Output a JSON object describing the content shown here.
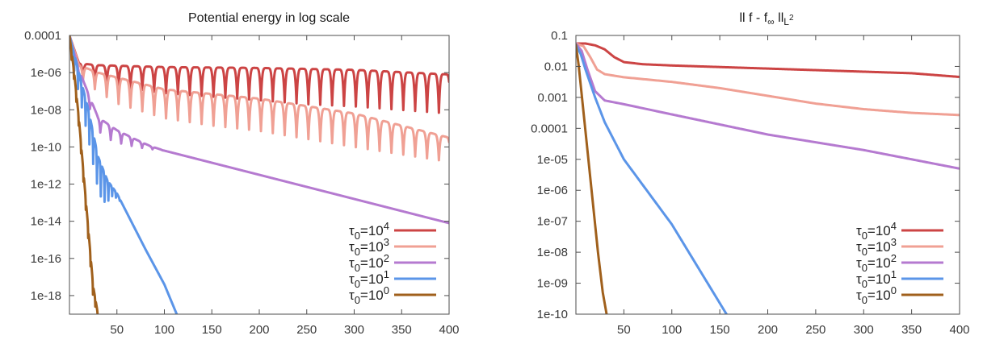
{
  "chart_data": [
    {
      "type": "line",
      "title": "Potential energy in log scale",
      "xlabel": "",
      "ylabel": "",
      "yscale": "log",
      "xlim": [
        0,
        400
      ],
      "ylim_exponents": [
        -19,
        -4
      ],
      "x_ticks": [
        50,
        100,
        150,
        200,
        250,
        300,
        350,
        400
      ],
      "x_tick_labels": [
        "50",
        "100",
        "150",
        "200",
        "250",
        "300",
        "350",
        "400"
      ],
      "y_ticks_exp": [
        -4,
        -6,
        -8,
        -10,
        -12,
        -14,
        -16,
        -18
      ],
      "y_tick_labels": [
        "0.0001",
        "1e-06",
        "1e-08",
        "1e-10",
        "1e-12",
        "1e-14",
        "1e-16",
        "1e-18"
      ],
      "grid": false,
      "legend_position": "bottom-right",
      "series": [
        {
          "name_prefix": "τ",
          "name_sub": "0",
          "name_mid": "=10",
          "name_sup": "4",
          "color": "#cc4444",
          "envelope_exp": [
            [
              0,
              -4
            ],
            [
              10,
              -5.5
            ],
            [
              30,
              -5.6
            ],
            [
              100,
              -5.7
            ],
            [
              200,
              -5.75
            ],
            [
              300,
              -5.85
            ],
            [
              400,
              -6.1
            ]
          ],
          "oscillation": {
            "start_x": 8,
            "period": 12.5,
            "depth_exp": [
              [
                8,
                -0.6
              ],
              [
                30,
                -1.0
              ],
              [
                100,
                -1.4
              ],
              [
                250,
                -1.9
              ],
              [
                400,
                -2.1
              ]
            ]
          }
        },
        {
          "name_prefix": "τ",
          "name_sub": "0",
          "name_mid": "=10",
          "name_sup": "3",
          "color": "#f0a094",
          "envelope_exp": [
            [
              0,
              -4
            ],
            [
              10,
              -5.6
            ],
            [
              30,
              -6.0
            ],
            [
              100,
              -6.9
            ],
            [
              200,
              -7.4
            ],
            [
              300,
              -8.2
            ],
            [
              400,
              -9.5
            ]
          ],
          "oscillation": {
            "start_x": 8,
            "period": 12.5,
            "depth_exp": [
              [
                8,
                -0.6
              ],
              [
                50,
                -1.4
              ],
              [
                150,
                -1.7
              ],
              [
                300,
                -1.8
              ],
              [
                400,
                -1.3
              ]
            ]
          }
        },
        {
          "name_prefix": "τ",
          "name_sub": "0",
          "name_mid": "=10",
          "name_sup": "2",
          "color": "#b57ad0",
          "envelope_exp": [
            [
              0,
              -4
            ],
            [
              8,
              -5.5
            ],
            [
              15,
              -6.5
            ],
            [
              30,
              -8.4
            ],
            [
              50,
              -9.1
            ],
            [
              70,
              -9.6
            ],
            [
              85,
              -9.95
            ],
            [
              100,
              -10.2
            ],
            [
              200,
              -11.5
            ],
            [
              300,
              -12.8
            ],
            [
              400,
              -14.1
            ]
          ],
          "oscillation": {
            "start_x": 5,
            "period": 11,
            "depth_exp": [
              [
                5,
                -0.5
              ],
              [
                40,
                -0.8
              ],
              [
                70,
                -0.4
              ],
              [
                90,
                -0.1
              ],
              [
                100,
                0
              ]
            ]
          }
        },
        {
          "name_prefix": "τ",
          "name_sub": "0",
          "name_mid": "=10",
          "name_sup": "1",
          "color": "#5b95e8",
          "envelope_exp": [
            [
              0,
              -4
            ],
            [
              10,
              -6
            ],
            [
              20,
              -8
            ],
            [
              30,
              -10.5
            ],
            [
              40,
              -11.8
            ],
            [
              50,
              -12.5
            ],
            [
              65,
              -14
            ],
            [
              80,
              -15.5
            ],
            [
              100,
              -17.4
            ],
            [
              113,
              -19
            ]
          ],
          "oscillation": {
            "start_x": 3,
            "period": 4,
            "depth_exp": [
              [
                3,
                -0.8
              ],
              [
                20,
                -1.6
              ],
              [
                35,
                -1.8
              ],
              [
                45,
                -0.5
              ],
              [
                55,
                0
              ]
            ]
          }
        },
        {
          "name_prefix": "τ",
          "name_sub": "0",
          "name_mid": "=10",
          "name_sup": "0",
          "color": "#a0601c",
          "envelope_exp": [
            [
              0,
              -4
            ],
            [
              5,
              -6
            ],
            [
              10,
              -8.5
            ],
            [
              15,
              -11.5
            ],
            [
              20,
              -14.5
            ],
            [
              25,
              -17.5
            ],
            [
              30,
              -19
            ]
          ],
          "oscillation": {
            "start_x": 1,
            "period": 2.5,
            "depth_exp": [
              [
                1,
                -0.4
              ],
              [
                25,
                -0.6
              ],
              [
                30,
                -0.2
              ]
            ]
          }
        }
      ]
    },
    {
      "type": "line",
      "title_parts": [
        "ll f - f",
        "∞",
        " ll",
        "L",
        "2"
      ],
      "xlabel": "",
      "ylabel": "",
      "yscale": "log",
      "xlim": [
        0,
        400
      ],
      "ylim_exponents": [
        -10,
        -1
      ],
      "x_ticks": [
        50,
        100,
        150,
        200,
        250,
        300,
        350,
        400
      ],
      "x_tick_labels": [
        "50",
        "100",
        "150",
        "200",
        "250",
        "300",
        "350",
        "400"
      ],
      "y_ticks_exp": [
        -1,
        -2,
        -3,
        -4,
        -5,
        -6,
        -7,
        -8,
        -9,
        -10
      ],
      "y_tick_labels": [
        "0.1",
        "0.01",
        "0.001",
        "0.0001",
        "1e-05",
        "1e-06",
        "1e-07",
        "1e-08",
        "1e-09",
        "1e-10"
      ],
      "grid": false,
      "legend_position": "bottom-right",
      "series": [
        {
          "name_prefix": "τ",
          "name_sub": "0",
          "name_mid": "=10",
          "name_sup": "4",
          "color": "#cc4444",
          "points_exp": [
            [
              0,
              -1.26
            ],
            [
              10,
              -1.26
            ],
            [
              20,
              -1.32
            ],
            [
              30,
              -1.45
            ],
            [
              40,
              -1.7
            ],
            [
              50,
              -1.86
            ],
            [
              70,
              -1.93
            ],
            [
              100,
              -1.97
            ],
            [
              150,
              -2.02
            ],
            [
              200,
              -2.07
            ],
            [
              250,
              -2.12
            ],
            [
              300,
              -2.17
            ],
            [
              350,
              -2.22
            ],
            [
              400,
              -2.34
            ]
          ]
        },
        {
          "name_prefix": "τ",
          "name_sub": "0",
          "name_mid": "=10",
          "name_sup": "3",
          "color": "#f0a094",
          "points_exp": [
            [
              0,
              -1.26
            ],
            [
              8,
              -1.35
            ],
            [
              15,
              -1.7
            ],
            [
              22,
              -2.1
            ],
            [
              30,
              -2.25
            ],
            [
              50,
              -2.35
            ],
            [
              100,
              -2.5
            ],
            [
              150,
              -2.7
            ],
            [
              200,
              -2.95
            ],
            [
              250,
              -3.2
            ],
            [
              300,
              -3.38
            ],
            [
              350,
              -3.5
            ],
            [
              400,
              -3.57
            ]
          ]
        },
        {
          "name_prefix": "τ",
          "name_sub": "0",
          "name_mid": "=10",
          "name_sup": "2",
          "color": "#b57ad0",
          "points_exp": [
            [
              0,
              -1.26
            ],
            [
              6,
              -1.5
            ],
            [
              12,
              -2.1
            ],
            [
              20,
              -2.8
            ],
            [
              30,
              -3.1
            ],
            [
              50,
              -3.22
            ],
            [
              100,
              -3.55
            ],
            [
              200,
              -4.2
            ],
            [
              300,
              -4.7
            ],
            [
              400,
              -5.3
            ]
          ]
        },
        {
          "name_prefix": "τ",
          "name_sub": "0",
          "name_mid": "=10",
          "name_sup": "1",
          "color": "#5b95e8",
          "points_exp": [
            [
              0,
              -1.3
            ],
            [
              5,
              -1.6
            ],
            [
              10,
              -2.1
            ],
            [
              20,
              -3.0
            ],
            [
              30,
              -3.8
            ],
            [
              50,
              -5.0
            ],
            [
              100,
              -7.1
            ],
            [
              157,
              -10
            ]
          ]
        },
        {
          "name_prefix": "τ",
          "name_sub": "0",
          "name_mid": "=10",
          "name_sup": "0",
          "color": "#a0601c",
          "points_exp": [
            [
              0,
              -1.3
            ],
            [
              3,
              -2
            ],
            [
              8,
              -3.5
            ],
            [
              13,
              -5
            ],
            [
              18,
              -6.5
            ],
            [
              23,
              -8
            ],
            [
              28,
              -9.3
            ],
            [
              32,
              -10
            ]
          ]
        }
      ]
    }
  ]
}
